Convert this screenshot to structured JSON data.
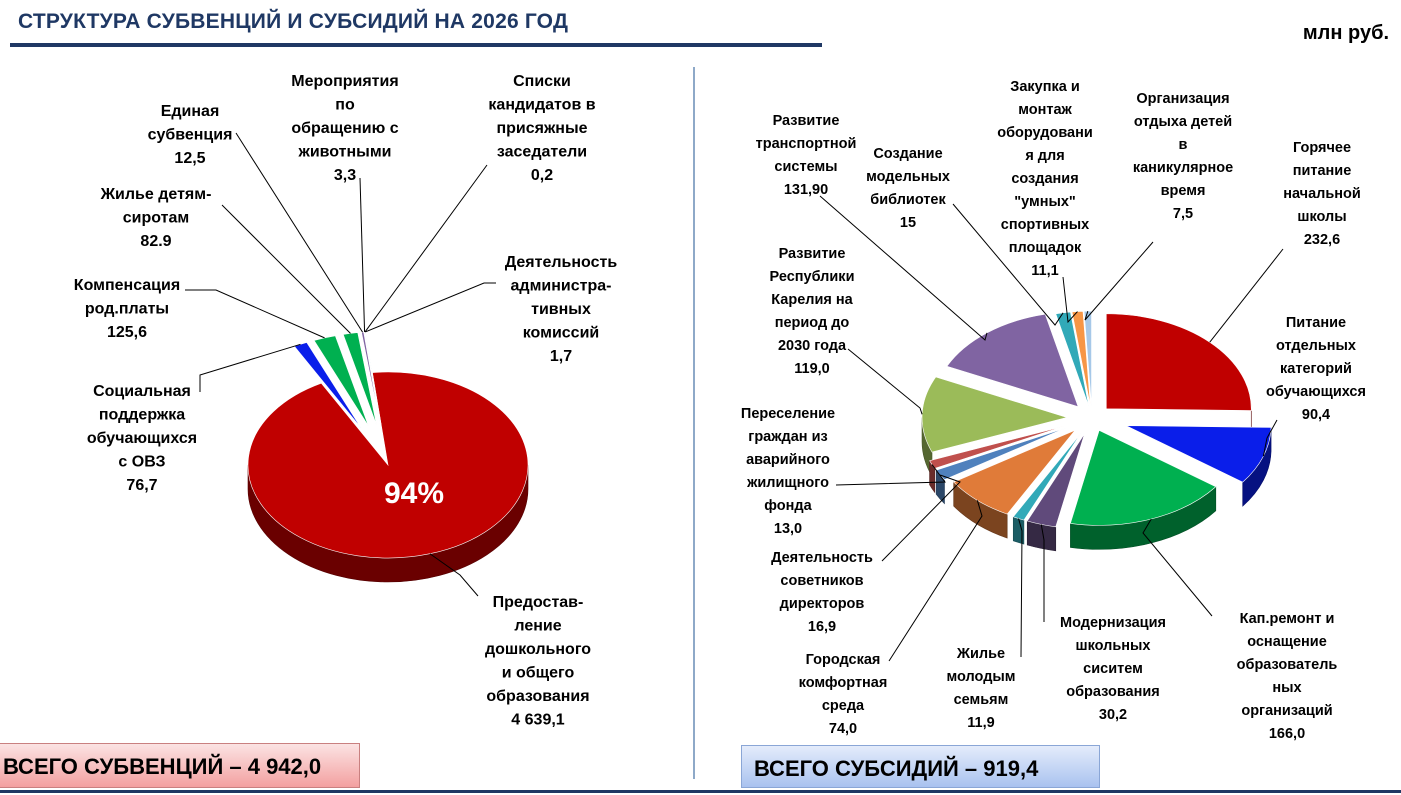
{
  "header": {
    "title": "СТРУКТУРА СУБВЕНЦИЙ И СУБСИДИЙ НА 2026 ГОД",
    "unit": "млн руб."
  },
  "totals": {
    "subventions": "ВСЕГО СУБВЕНЦИЙ – 4 942,0",
    "subsidies": "ВСЕГО СУБСИДИЙ – 919,4"
  },
  "colors": {
    "red": "#c00000",
    "blue": "#0a1eea",
    "green": "#00b050",
    "purple": "#8064a2",
    "light_green": "#9bbb59",
    "pink": "#c0504d",
    "steel_blue": "#4f81bd",
    "orange": "#e07b39",
    "teal": "#31a9b8",
    "light_orange": "#f79646",
    "light_blue": "#a6c8e8",
    "title_blue": "#1f3864"
  },
  "chart_data": [
    {
      "type": "pie",
      "title": "",
      "percent_label": "94%",
      "slices": [
        {
          "label": [
            "Предостав-",
            "ление",
            "дошкольного",
            "и общего",
            "образования"
          ],
          "value": 4639.1,
          "value_label": "4 639,1",
          "color": "#c00000"
        },
        {
          "label": [
            "Социальная",
            "поддержка",
            "обучающихся",
            "с ОВЗ"
          ],
          "value": 76.7,
          "value_label": "76,7",
          "color": "#0a1eea"
        },
        {
          "label": [
            "Компенсация",
            "род.платы"
          ],
          "value": 125.6,
          "value_label": "125,6",
          "color": "#00b050"
        },
        {
          "label": [
            "Жилье детям-",
            "сиротам"
          ],
          "value": 82.9,
          "value_label": "82.9",
          "color": "#00b050"
        },
        {
          "label": [
            "Единая",
            "субвенция"
          ],
          "value": 12.5,
          "value_label": "12,5",
          "color": "#8064a2"
        },
        {
          "label": [
            "Мероприятия",
            "по",
            "обращению с",
            "животными"
          ],
          "value": 3.3,
          "value_label": "3,3",
          "color": "#8064a2"
        },
        {
          "label": [
            "Списки",
            "кандидатов в",
            "присяжные",
            "заседатели"
          ],
          "value": 0.2,
          "value_label": "0,2",
          "color": "#4f81bd"
        },
        {
          "label": [
            "Деятельность",
            "администра-",
            "тивных",
            "комиссий"
          ],
          "value": 1.7,
          "value_label": "1,7",
          "color": "#31a9b8"
        }
      ]
    },
    {
      "type": "pie",
      "title": "",
      "slices": [
        {
          "label": [
            "Горячее",
            "питание",
            "начальной",
            "школы"
          ],
          "value": 232.6,
          "value_label": "232,6",
          "color": "#c00000"
        },
        {
          "label": [
            "Питание",
            "отдельных",
            "категорий",
            "обучающихся"
          ],
          "value": 90.4,
          "value_label": "90,4",
          "color": "#0a1eea"
        },
        {
          "label": [
            "Кап.ремонт и",
            "оснащение",
            "образователь",
            "ных",
            "организаций"
          ],
          "value": 166.0,
          "value_label": "166,0",
          "color": "#00b050"
        },
        {
          "label": [
            "Модернизация",
            "школьных",
            "сиситем",
            "образования"
          ],
          "value": 30.2,
          "value_label": "30,2",
          "color": "#604a7b"
        },
        {
          "label": [
            "Жилье",
            "молодым",
            "семьям"
          ],
          "value": 11.9,
          "value_label": "11,9",
          "color": "#31a9b8"
        },
        {
          "label": [
            "Городская",
            "комфортная",
            "среда"
          ],
          "value": 74.0,
          "value_label": "74,0",
          "color": "#e07b39"
        },
        {
          "label": [
            "Деятельность",
            "советников",
            "директоров"
          ],
          "value": 16.9,
          "value_label": "16,9",
          "color": "#4f81bd"
        },
        {
          "label": [
            "Переселение",
            "граждан из",
            "аварийного",
            "жилищного",
            "фонда"
          ],
          "value": 13.0,
          "value_label": "13,0",
          "color": "#c0504d"
        },
        {
          "label": [
            "Развитие",
            "Республики",
            "Карелия на",
            "период до",
            "2030 года"
          ],
          "value": 119.0,
          "value_label": "119,0",
          "color": "#9bbb59"
        },
        {
          "label": [
            "Развитие",
            "транспортной",
            "системы"
          ],
          "value": 131.9,
          "value_label": "131,90",
          "color": "#8064a2"
        },
        {
          "label": [
            "Создание",
            "модельных",
            "библиотек"
          ],
          "value": 15,
          "value_label": "15",
          "color": "#31a9b8"
        },
        {
          "label": [
            "Закупка и",
            "монтаж",
            "оборудовани",
            "я для",
            "создания",
            "\"умных\"",
            "спортивных",
            "площадок"
          ],
          "value": 11.1,
          "value_label": "11,1",
          "color": "#f79646"
        },
        {
          "label": [
            "Организация",
            "отдыха детей",
            "в",
            "каникулярное",
            "время"
          ],
          "value": 7.5,
          "value_label": "7,5",
          "color": "#a6c8e8"
        }
      ]
    }
  ]
}
